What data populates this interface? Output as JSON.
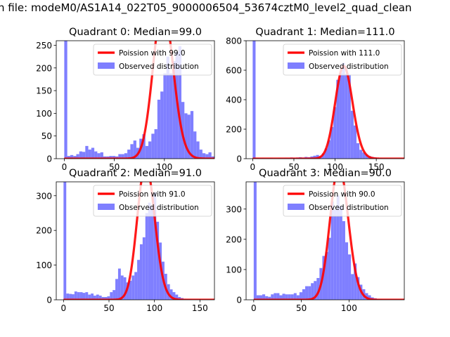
{
  "figure": {
    "suptitle": "n file: modeM0/AS1A14_022T05_9000006504_53674cztM0_level2_quad_clean"
  },
  "colors": {
    "hist": "#7f7fff",
    "poisson": "#ff0000",
    "axis": "#000000",
    "legend_border": "#cccccc"
  },
  "legend_labels": {
    "poisson": "Poission with",
    "observed": "Observed distribution"
  },
  "chart_data": [
    {
      "type": "histogram",
      "title": "Quadrant 0: Median=99.0",
      "median": 99.0,
      "poisson_label": "Poission with 99.0",
      "xlim": [
        -8,
        150
      ],
      "ylim": [
        0,
        260
      ],
      "xticks": [
        0,
        50,
        100
      ],
      "yticks": [
        0,
        50,
        100,
        150,
        200,
        250
      ],
      "bin_width": 3,
      "bins_start": 0,
      "hist": [
        262,
        6,
        8,
        6,
        10,
        16,
        15,
        28,
        20,
        24,
        16,
        12,
        14,
        5,
        5,
        6,
        6,
        5,
        10,
        10,
        12,
        20,
        32,
        40,
        24,
        44,
        54,
        28,
        38,
        55,
        65,
        130,
        148,
        188,
        225,
        188,
        215,
        235,
        248,
        125,
        100,
        97,
        105,
        60,
        38,
        20,
        12,
        10,
        14,
        5
      ]
    },
    {
      "type": "histogram",
      "title": "Quadrant 1: Median=111.0",
      "median": 111.0,
      "poisson_label": "Poission with 111.0",
      "xlim": [
        -8,
        184
      ],
      "ylim": [
        0,
        800
      ],
      "xticks": [
        0,
        50,
        100,
        150
      ],
      "yticks": [
        0,
        200,
        400,
        600,
        800
      ],
      "bin_width": 3.5,
      "bins_start": 0,
      "hist": [
        800,
        5,
        3,
        4,
        3,
        3,
        5,
        3,
        3,
        4,
        4,
        6,
        5,
        8,
        6,
        8,
        10,
        8,
        12,
        10,
        15,
        20,
        25,
        18,
        35,
        70,
        125,
        215,
        350,
        535,
        580,
        650,
        575,
        570,
        325,
        225,
        105,
        60,
        42,
        28,
        18,
        12,
        8,
        6,
        4,
        3,
        3,
        2,
        2,
        2
      ]
    },
    {
      "type": "histogram",
      "title": "Quadrant 2: Median=91.0",
      "median": 91.0,
      "poisson_label": "Poission with 91.0",
      "xlim": [
        -8,
        166
      ],
      "ylim": [
        0,
        340
      ],
      "xticks": [
        0,
        50,
        100,
        150
      ],
      "yticks": [
        0,
        100,
        200,
        300
      ],
      "bin_width": 3,
      "bins_start": 0,
      "hist": [
        340,
        18,
        17,
        16,
        24,
        22,
        22,
        20,
        22,
        15,
        18,
        12,
        15,
        12,
        8,
        8,
        10,
        22,
        28,
        60,
        90,
        70,
        65,
        50,
        55,
        70,
        80,
        115,
        160,
        180,
        250,
        280,
        270,
        310,
        225,
        165,
        110,
        75,
        45,
        30,
        22,
        15,
        8,
        5,
        3,
        2,
        2,
        1,
        1,
        1
      ]
    },
    {
      "type": "histogram",
      "title": "Quadrant 3: Median=90.0",
      "median": 90.0,
      "poisson_label": "Poission with 90.0",
      "xlim": [
        -8,
        158
      ],
      "ylim": [
        0,
        390
      ],
      "xticks": [
        0,
        50,
        100
      ],
      "yticks": [
        0,
        100,
        200,
        300
      ],
      "bin_width": 3,
      "bins_start": 0,
      "hist": [
        390,
        15,
        15,
        18,
        12,
        10,
        18,
        22,
        22,
        15,
        20,
        18,
        18,
        18,
        22,
        15,
        25,
        35,
        45,
        45,
        55,
        62,
        72,
        105,
        145,
        158,
        205,
        325,
        300,
        345,
        310,
        260,
        190,
        150,
        85,
        120,
        75,
        50,
        35,
        22,
        15,
        8,
        5,
        3,
        2,
        1,
        1,
        1,
        1,
        1
      ]
    }
  ]
}
